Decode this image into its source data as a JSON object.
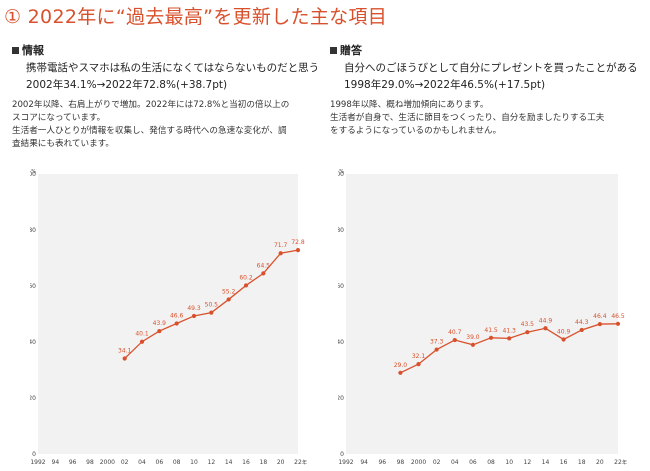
{
  "page": {
    "title": "① 2022年に“過去最高”を更新した主な項目"
  },
  "left": {
    "heading": "情報",
    "subtitle": "携帯電話やスマホは私の生活になくてはならないものだと思う",
    "headline": "2002年34.1%→2022年72.8%(+38.7pt)",
    "description": [
      "2002年以降、右肩上がりで増加。2022年には72.8%と当初の倍以上の",
      "スコアになっています。",
      "生活者一人ひとりが情報を収集し、発信する時代への急速な変化が、調",
      "査結果にも表れています。"
    ]
  },
  "right": {
    "heading": "贈答",
    "subtitle": "自分へのごほうびとして自分にプレゼントを買ったことがある",
    "headline": "1998年29.0%→2022年46.5%(+17.5pt)",
    "description": [
      "1998年以降、概ね増加傾向にあります。",
      "生活者が自身で、生活に節目をつくったり、自分を励ましたりする工夫",
      "をするようになっているのかもしれません。"
    ]
  },
  "chart_data": [
    {
      "type": "line",
      "y_unit": "%",
      "x_unit": "年",
      "ylim": [
        0,
        100
      ],
      "yticks": [
        "0",
        "20",
        "40",
        "60",
        "80",
        "100"
      ],
      "x_ticks": [
        "1992",
        "94",
        "96",
        "98",
        "2000",
        "02",
        "04",
        "06",
        "08",
        "10",
        "12",
        "14",
        "16",
        "18",
        "20",
        "22"
      ],
      "grid": false,
      "background": "#f2f2f2",
      "color": "#d9512c",
      "series": [
        {
          "x": [
            "02",
            "04",
            "06",
            "08",
            "10",
            "12",
            "14",
            "16",
            "18",
            "20",
            "22"
          ],
          "values": [
            34.1,
            40.1,
            43.9,
            46.6,
            49.3,
            50.5,
            55.2,
            60.2,
            64.5,
            71.7,
            72.8
          ],
          "labels": [
            "34.1",
            "40.1",
            "43.9",
            "46.6",
            "49.3",
            "50.5",
            "55.2",
            "60.2",
            "64.5",
            "71.7",
            "72.8"
          ]
        }
      ]
    },
    {
      "type": "line",
      "y_unit": "%",
      "x_unit": "年",
      "ylim": [
        0,
        100
      ],
      "yticks": [
        "0",
        "20",
        "40",
        "60",
        "80",
        "100"
      ],
      "x_ticks": [
        "1992",
        "94",
        "96",
        "98",
        "2000",
        "02",
        "04",
        "06",
        "08",
        "10",
        "12",
        "14",
        "16",
        "18",
        "20",
        "22"
      ],
      "grid": false,
      "background": "#f2f2f2",
      "color": "#d9512c",
      "series": [
        {
          "x": [
            "98",
            "2000",
            "02",
            "04",
            "06",
            "08",
            "10",
            "12",
            "14",
            "16",
            "18",
            "20",
            "22"
          ],
          "values": [
            29.0,
            32.1,
            37.3,
            40.7,
            39.0,
            41.5,
            41.3,
            43.5,
            44.9,
            40.9,
            44.3,
            46.4,
            46.5
          ],
          "labels": [
            "29.0",
            "32.1",
            "37.3",
            "40.7",
            "39.0",
            "41.5",
            "41.3",
            "43.5",
            "44.9",
            "40.9",
            "44.3",
            "46.4",
            "46.5"
          ]
        }
      ]
    }
  ]
}
